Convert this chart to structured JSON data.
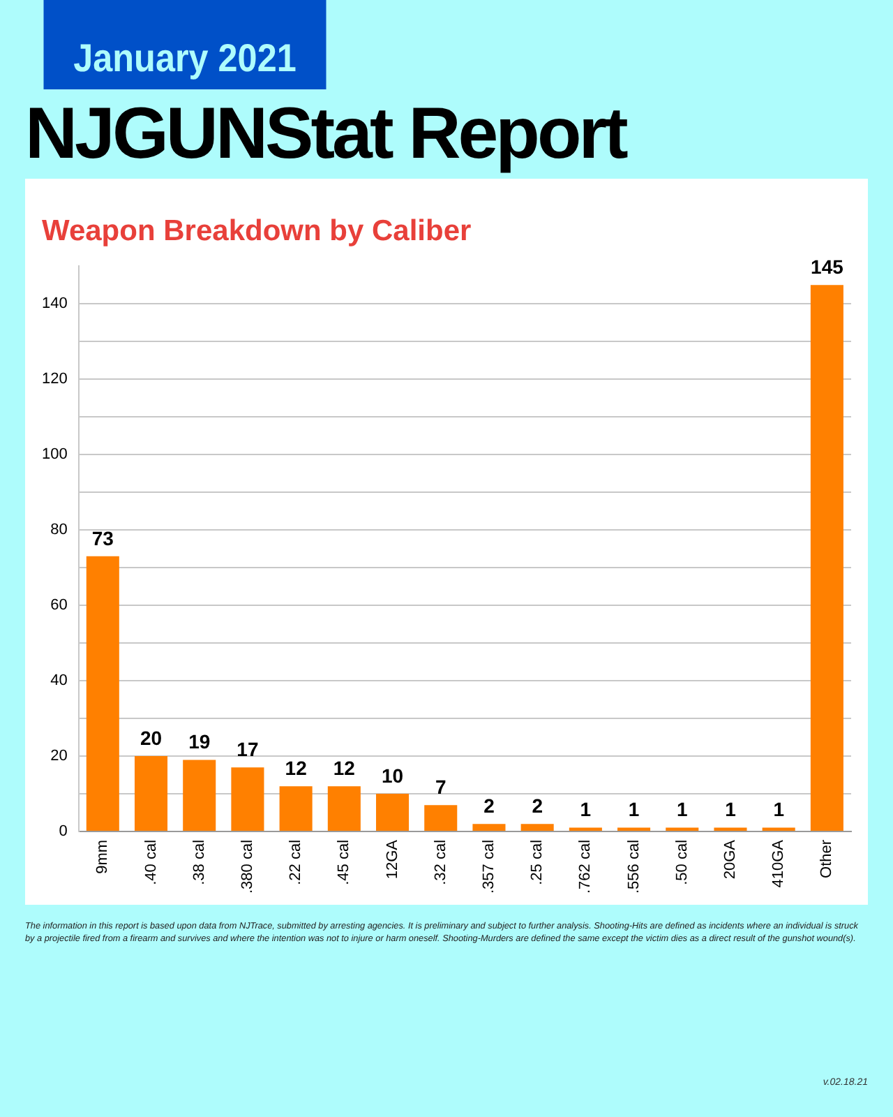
{
  "chart_data": {
    "type": "bar",
    "title": "Weapon Breakdown by Caliber",
    "categories": [
      "9mm",
      ".40 cal",
      ".38 cal",
      ".380 cal",
      ".22 cal",
      ".45 cal",
      "12GA",
      ".32 cal",
      ".357 cal",
      ".25 cal",
      ".762 cal",
      ".556 cal",
      ".50 cal",
      "20GA",
      "410GA",
      "Other"
    ],
    "values": [
      73,
      20,
      19,
      17,
      12,
      12,
      10,
      7,
      2,
      2,
      1,
      1,
      1,
      1,
      1,
      145
    ],
    "color": "#ff8000",
    "ylim": [
      0,
      150
    ],
    "yticks": [
      0,
      {
        "value": 10,
        "label": null
      },
      20,
      {
        "value": 30,
        "label": null
      },
      40,
      {
        "value": 50,
        "label": null
      },
      60,
      {
        "value": 70,
        "label": null
      },
      80,
      {
        "value": 90,
        "label": null
      },
      100,
      {
        "value": 110,
        "label": null
      },
      120,
      {
        "value": 130,
        "label": null
      },
      140
    ],
    "grid": "y",
    "legend": false,
    "data_labels": true,
    "annotations": [
      "January 2021",
      "NJGUNStat Report",
      "The information in this report is based upon data from NJTrace, submitted by arresting agencies. It is preliminary and subject to further analysis. Shooting-Hits are defined as incidents where an individual is struck by a projectile fired from a firearm and survives and where the intention was not to injure or harm oneself. Shooting-Murders are defined the same except the victim dies as a direct result of the gunshot wound(s).",
      "v.02.18.21"
    ]
  }
}
